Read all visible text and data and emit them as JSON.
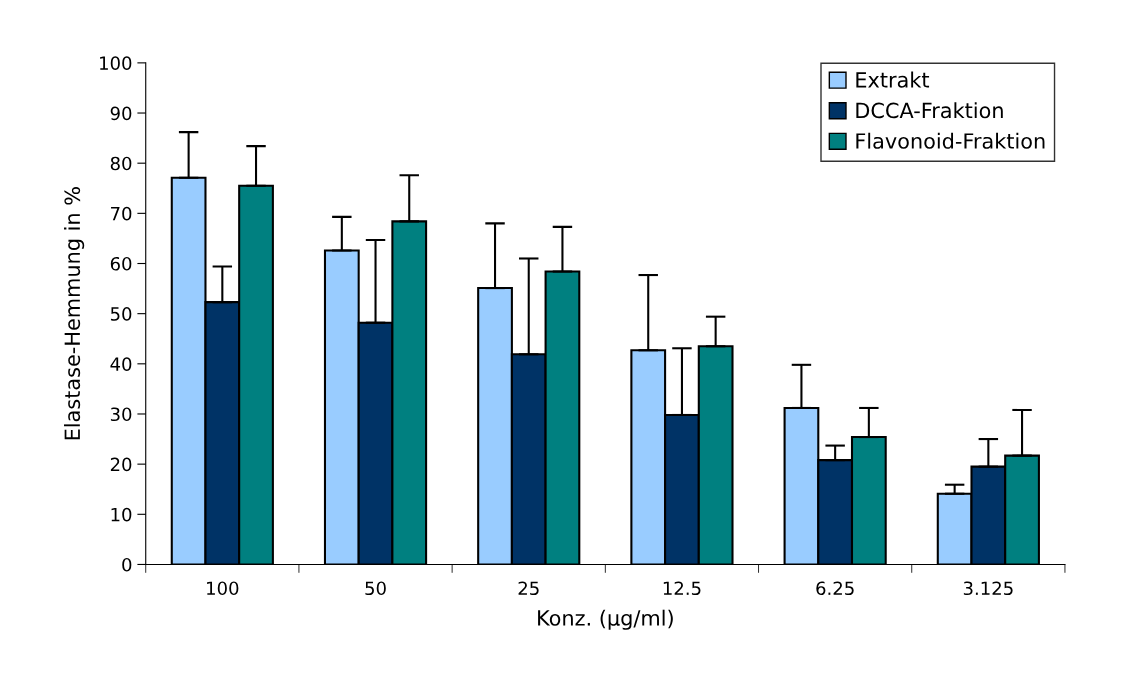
{
  "chart_data": {
    "type": "bar",
    "xlabel": "Konz. (µg/ml)",
    "ylabel": "Elastase-Hemmung in %",
    "categories": [
      "100",
      "50",
      "25",
      "12.5",
      "6.25",
      "3.125"
    ],
    "series": [
      {
        "name": "Extrakt",
        "color": "#99ccff",
        "values": [
          77.1,
          62.6,
          55.1,
          42.7,
          31.2,
          14.1
        ],
        "errors": [
          [
            77.1,
            86.2
          ],
          [
            62.6,
            69.3
          ],
          [
            55.1,
            68.0
          ],
          [
            42.7,
            57.7
          ],
          [
            31.2,
            39.8
          ],
          [
            14.1,
            15.9
          ]
        ]
      },
      {
        "name": "DCCA-Fraktion",
        "color": "#003366",
        "values": [
          52.3,
          48.2,
          41.9,
          29.8,
          20.8,
          19.5
        ],
        "errors": [
          [
            52.3,
            59.4
          ],
          [
            48.2,
            64.7
          ],
          [
            41.9,
            61.0
          ],
          [
            29.8,
            43.1
          ],
          [
            20.8,
            23.7
          ],
          [
            19.5,
            25.0
          ]
        ]
      },
      {
        "name": "Flavonoid-Fraktion",
        "color": "#008080",
        "values": [
          75.5,
          68.4,
          58.4,
          43.5,
          25.4,
          21.7
        ],
        "errors": [
          [
            75.5,
            83.4
          ],
          [
            68.4,
            77.6
          ],
          [
            58.4,
            67.3
          ],
          [
            43.5,
            49.4
          ],
          [
            25.4,
            31.2
          ],
          [
            21.7,
            30.8
          ]
        ]
      }
    ],
    "ylim": [
      0,
      100
    ],
    "yticks": [
      0,
      10,
      20,
      30,
      40,
      50,
      60,
      70,
      80,
      90,
      100
    ],
    "grid": false,
    "legend": "top right"
  }
}
